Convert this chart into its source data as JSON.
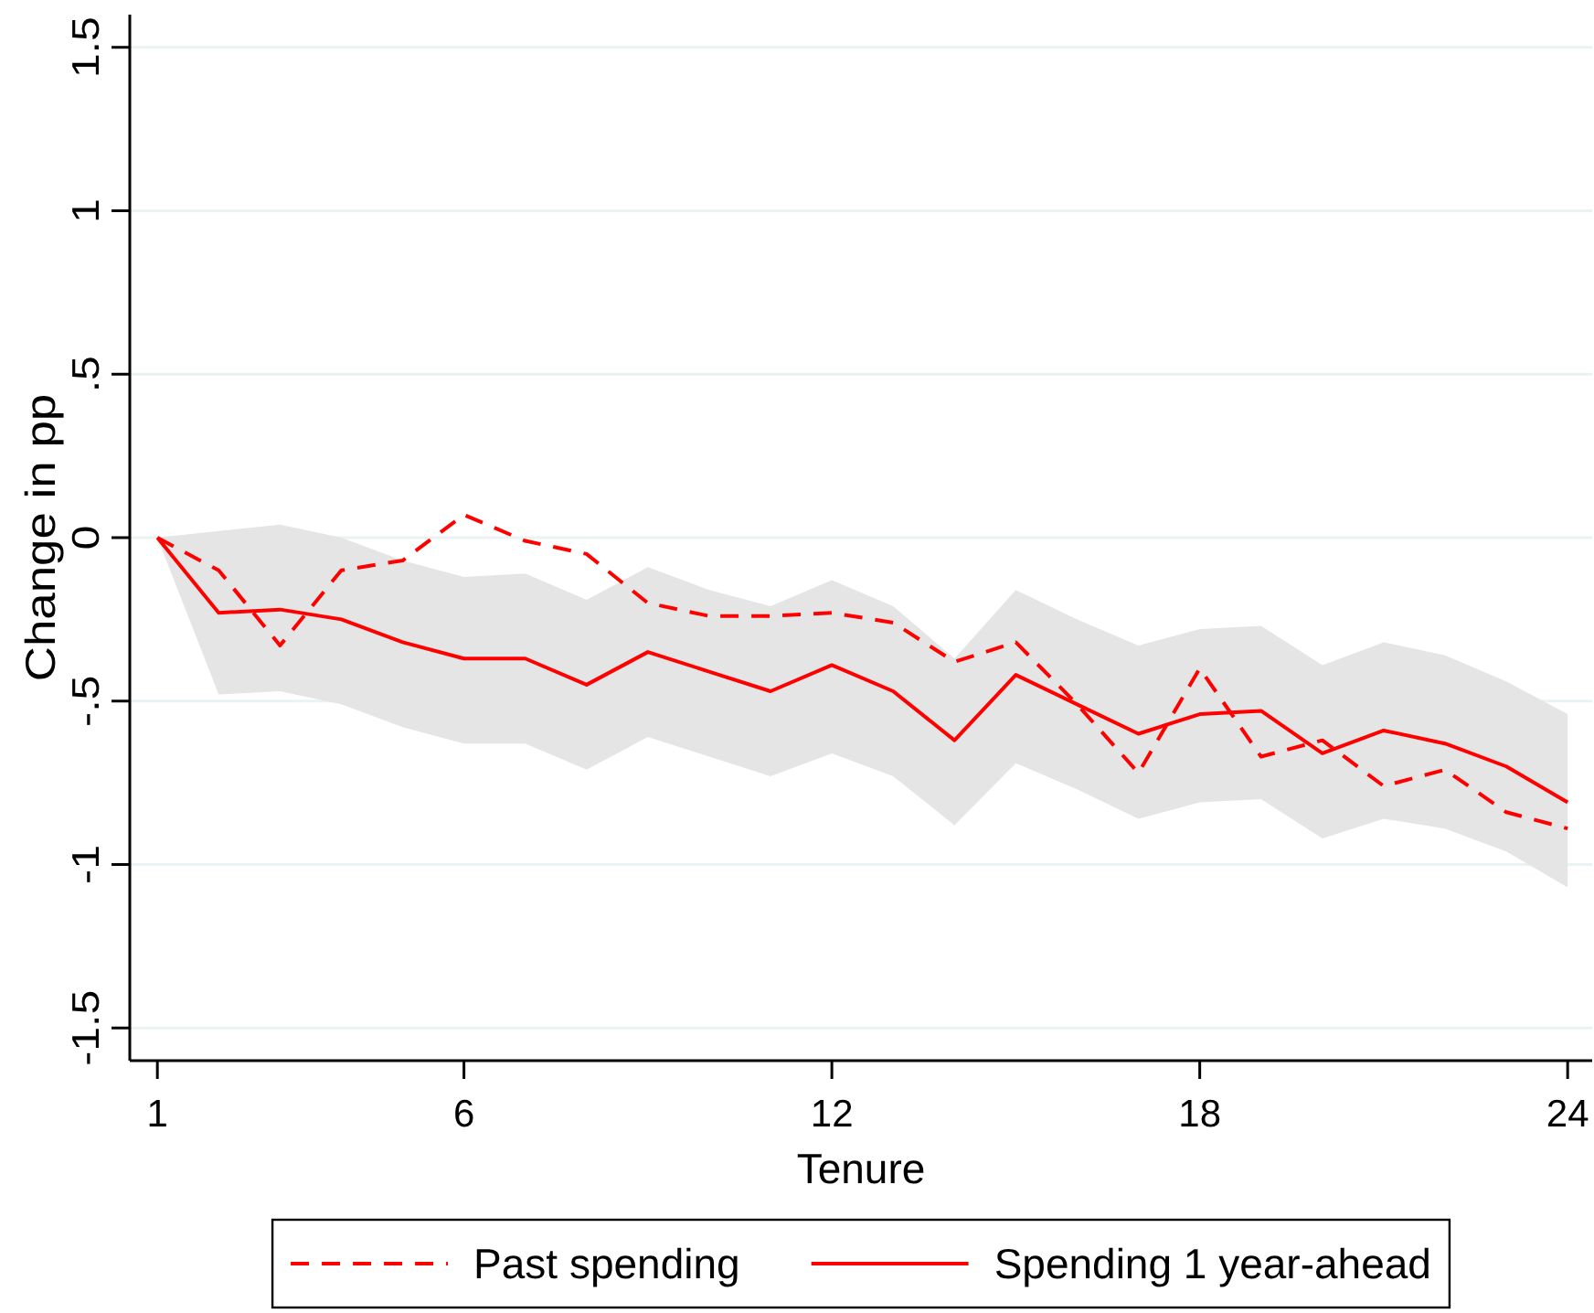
{
  "chart_data": {
    "type": "line",
    "xlabel": "Tenure",
    "ylabel": "Change in pp",
    "x": [
      1,
      2,
      3,
      4,
      5,
      6,
      7,
      8,
      9,
      10,
      11,
      12,
      13,
      14,
      15,
      16,
      17,
      18,
      19,
      20,
      21,
      22,
      23,
      24
    ],
    "xlim": [
      0.55,
      24.4
    ],
    "xticks": [
      1,
      6,
      12,
      18,
      24
    ],
    "ylim": [
      -1.6,
      1.6
    ],
    "yticks": [
      1.5,
      1,
      {
        "value": 0.5,
        "label": ".5"
      },
      0,
      {
        "value": -0.5,
        "label": "-.5"
      },
      -1,
      -1.5
    ],
    "grid": "y",
    "legend": "bottom",
    "series": [
      {
        "name": "Past spending",
        "color": "#ff0000",
        "line_style": "dashed",
        "values": [
          0,
          -0.1,
          -0.33,
          -0.1,
          -0.07,
          0.07,
          -0.01,
          -0.05,
          -0.2,
          -0.24,
          -0.24,
          -0.23,
          -0.26,
          -0.38,
          -0.32,
          -0.51,
          -0.72,
          -0.4,
          -0.67,
          -0.62,
          -0.76,
          -0.71,
          -0.84,
          -0.89
        ]
      },
      {
        "name": "Spending 1 year-ahead",
        "color": "#ff0000",
        "line_style": "solid",
        "values": [
          0,
          -0.23,
          -0.22,
          -0.25,
          -0.32,
          -0.37,
          -0.37,
          -0.45,
          -0.35,
          -0.41,
          -0.47,
          -0.39,
          -0.47,
          -0.62,
          -0.42,
          -0.51,
          -0.6,
          -0.54,
          -0.53,
          -0.66,
          -0.59,
          -0.63,
          -0.7,
          -0.81
        ],
        "lower": [
          0,
          -0.48,
          -0.47,
          -0.51,
          -0.58,
          -0.63,
          -0.63,
          -0.71,
          -0.61,
          -0.67,
          -0.73,
          -0.66,
          -0.73,
          -0.88,
          -0.69,
          -0.77,
          -0.86,
          -0.81,
          -0.8,
          -0.92,
          -0.86,
          -0.89,
          -0.96,
          -1.07
        ],
        "upper": [
          0,
          0.02,
          0.04,
          0,
          -0.07,
          -0.12,
          -0.11,
          -0.19,
          -0.09,
          -0.16,
          -0.21,
          -0.13,
          -0.21,
          -0.37,
          -0.16,
          -0.25,
          -0.33,
          -0.28,
          -0.27,
          -0.39,
          -0.32,
          -0.36,
          -0.44,
          -0.54
        ]
      }
    ]
  }
}
